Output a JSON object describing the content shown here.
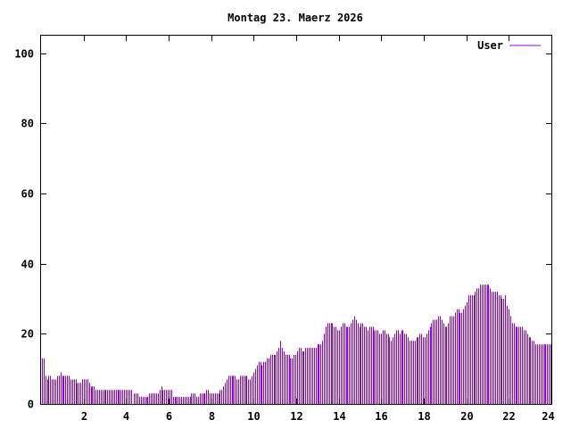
{
  "chart_data": {
    "type": "bar",
    "title": "Montag 23. Maerz 2026",
    "xlabel": "",
    "ylabel": "",
    "xlim": [
      0,
      24
    ],
    "ylim": [
      0,
      105
    ],
    "x_ticks": [
      2,
      4,
      6,
      8,
      10,
      12,
      14,
      16,
      18,
      20,
      22,
      24
    ],
    "y_ticks": [
      0,
      20,
      40,
      60,
      80,
      100
    ],
    "grid": false,
    "legend_position": "top-right",
    "series": [
      {
        "name": "User",
        "color": "#9400d3",
        "interval_hours": 0.0833,
        "values": [
          13,
          13,
          8,
          7,
          8,
          8,
          7,
          7,
          7,
          8,
          8,
          9,
          8,
          8,
          8,
          8,
          8,
          7,
          7,
          7,
          7,
          6,
          6,
          6,
          7,
          7,
          7,
          7,
          6,
          5,
          5,
          5,
          4,
          4,
          4,
          4,
          4,
          4,
          4,
          4,
          4,
          4,
          4,
          4,
          4,
          4,
          4,
          4,
          4,
          4,
          4,
          4,
          4,
          4,
          0,
          3,
          3,
          3,
          2,
          2,
          2,
          2,
          2,
          2,
          3,
          3,
          3,
          3,
          3,
          3,
          4,
          5,
          4,
          4,
          4,
          4,
          4,
          4,
          2,
          2,
          2,
          2,
          2,
          2,
          2,
          2,
          2,
          2,
          2,
          3,
          3,
          3,
          2,
          2,
          3,
          3,
          3,
          3,
          4,
          4,
          3,
          3,
          3,
          3,
          3,
          3,
          4,
          4,
          5,
          6,
          7,
          8,
          8,
          8,
          8,
          8,
          7,
          7,
          8,
          8,
          8,
          8,
          8,
          7,
          7,
          8,
          9,
          10,
          11,
          12,
          12,
          11,
          12,
          12,
          13,
          13,
          14,
          14,
          14,
          14,
          15,
          16,
          18,
          16,
          15,
          14,
          14,
          14,
          13,
          13,
          14,
          14,
          15,
          16,
          16,
          15,
          15,
          16,
          16,
          16,
          16,
          16,
          16,
          16,
          17,
          17,
          17,
          18,
          20,
          22,
          23,
          23,
          23,
          23,
          22,
          22,
          21,
          21,
          22,
          23,
          23,
          22,
          22,
          22,
          23,
          24,
          25,
          24,
          23,
          22,
          23,
          23,
          22,
          22,
          21,
          22,
          22,
          22,
          21,
          21,
          21,
          20,
          20,
          21,
          21,
          20,
          20,
          19,
          18,
          19,
          20,
          21,
          21,
          20,
          21,
          21,
          20,
          20,
          19,
          18,
          18,
          18,
          18,
          19,
          19,
          20,
          20,
          19,
          19,
          20,
          21,
          22,
          23,
          24,
          24,
          24,
          25,
          25,
          24,
          23,
          22,
          22,
          23,
          25,
          25,
          25,
          26,
          27,
          27,
          26,
          26,
          27,
          28,
          29,
          31,
          31,
          31,
          31,
          32,
          33,
          33,
          34,
          34,
          34,
          34,
          34,
          34,
          33,
          32,
          32,
          32,
          32,
          31,
          31,
          30,
          30,
          31,
          28,
          27,
          25,
          23,
          23,
          22,
          22,
          22,
          22,
          22,
          21,
          21,
          20,
          19,
          19,
          18,
          18,
          17,
          17,
          17,
          17,
          17,
          17,
          17,
          17,
          17,
          17
        ]
      }
    ]
  }
}
